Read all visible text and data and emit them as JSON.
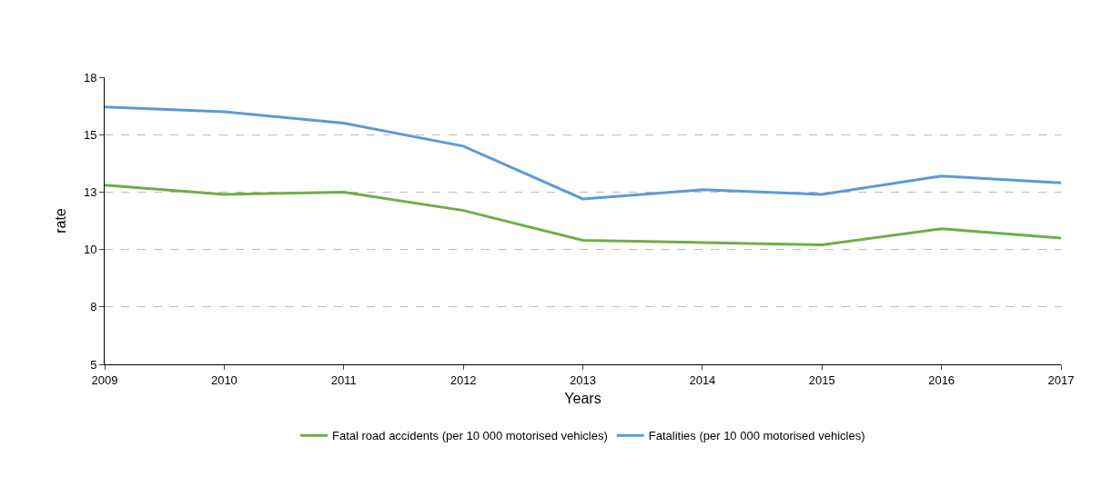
{
  "chart_data": {
    "type": "line",
    "xlabel": "Years",
    "ylabel": "rate",
    "x": [
      2009,
      2010,
      2011,
      2012,
      2013,
      2014,
      2015,
      2016,
      2017
    ],
    "xlim": [
      2009,
      2017
    ],
    "xticks": [
      2009,
      2010,
      2011,
      2012,
      2013,
      2014,
      2015,
      2016,
      2017
    ],
    "ylim": [
      5,
      17.5
    ],
    "yticks": [
      5,
      {
        "value": 7.5,
        "label": "8"
      },
      10,
      {
        "value": 12.5,
        "label": "13"
      },
      15,
      {
        "value": 17.5,
        "label": "18"
      }
    ],
    "grid": "y",
    "legend": "bottom",
    "marker": "none",
    "line_style": "solid",
    "series": [
      {
        "name": "Fatal road accidents (per 10 000 motorised vehicles)",
        "color": "#70ad47",
        "values": [
          12.8,
          12.4,
          12.5,
          11.7,
          10.4,
          10.3,
          10.2,
          10.9,
          10.5
        ]
      },
      {
        "name": "Fatalities (per 10 000 motorised vehicles)",
        "color": "#5b9bd5",
        "values": [
          16.2,
          16.0,
          15.5,
          14.5,
          12.2,
          12.6,
          12.4,
          13.2,
          12.9
        ]
      }
    ]
  }
}
